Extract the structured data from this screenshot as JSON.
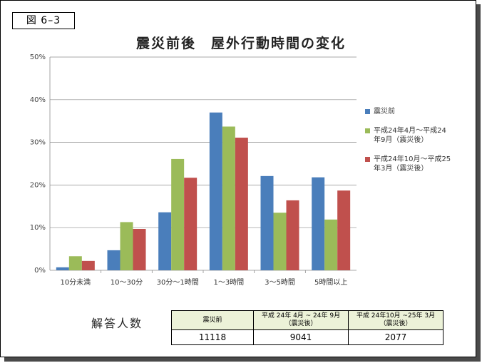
{
  "figure_label": "図 6–3",
  "chart_data": {
    "type": "bar",
    "title": "震災前後　屋外行動時間の変化",
    "categories": [
      "10分未満",
      "10〜30分",
      "30分〜1時間",
      "1〜3時間",
      "3〜5時間",
      "5時間以上"
    ],
    "series": [
      {
        "name": "震災前",
        "color": "#4a7ebb",
        "values": [
          0.7,
          4.7,
          13.6,
          37.0,
          22.1,
          21.8
        ]
      },
      {
        "name": "平成24年4月〜平成24年9月（震災後）",
        "color": "#9bbb59",
        "values": [
          3.3,
          11.3,
          26.1,
          33.7,
          13.5,
          11.9
        ]
      },
      {
        "name": "平成24年10月〜平成25年3月（震災後）",
        "color": "#c0504d",
        "values": [
          2.2,
          9.7,
          21.7,
          31.1,
          16.4,
          18.7
        ]
      }
    ],
    "ylim": [
      0,
      50
    ],
    "yticks": [
      "0%",
      "10%",
      "20%",
      "30%",
      "40%",
      "50%"
    ],
    "grid": true,
    "legend": "right"
  },
  "legend_labels": [
    [
      "震災前"
    ],
    [
      "平成24年4月〜平成24",
      "年9月（震災後）"
    ],
    [
      "平成24年10月〜平成25",
      "年3月（震災後）"
    ]
  ],
  "respondents": {
    "label": "解答人数",
    "headers": [
      {
        "line1": "震災前",
        "line2": ""
      },
      {
        "line1": "平成 24年 4月 ~ 24年 9月",
        "line2": "（震災後）"
      },
      {
        "line1": "平成 24年10月 ~25年 3月",
        "line2": "（震災後）"
      }
    ],
    "values": [
      "11118",
      "9041",
      "2077"
    ]
  }
}
